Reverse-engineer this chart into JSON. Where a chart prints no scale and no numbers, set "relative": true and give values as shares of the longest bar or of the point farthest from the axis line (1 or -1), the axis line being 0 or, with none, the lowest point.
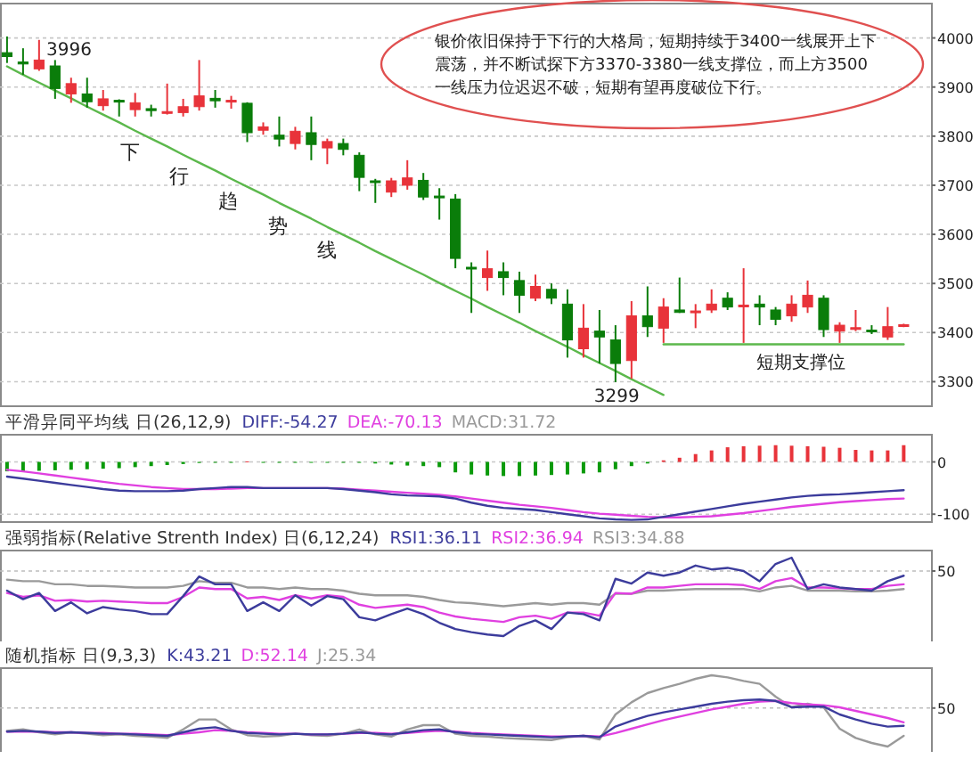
{
  "chart_data": [
    {
      "type": "candlestick",
      "categories": [
        null,
        null,
        null,
        null,
        null,
        null,
        null,
        null,
        null,
        null,
        null,
        null,
        null,
        null,
        null,
        null,
        null,
        null,
        null,
        null,
        null,
        null,
        null,
        null,
        null,
        null,
        null,
        null,
        null,
        null,
        null,
        null,
        null,
        null,
        null,
        null,
        null,
        null,
        null,
        null,
        null,
        null,
        null,
        null,
        null,
        null,
        null,
        null,
        null,
        null,
        null,
        null,
        null,
        null,
        null,
        null,
        null
      ],
      "ohlc": [
        [
          3970,
          4003,
          3949,
          3962
        ],
        [
          3951,
          3979,
          3925,
          3947
        ],
        [
          3937,
          3996,
          3933,
          3955
        ],
        [
          3943,
          3955,
          3876,
          3897
        ],
        [
          3886,
          3919,
          3868,
          3907
        ],
        [
          3886,
          3919,
          3858,
          3870
        ],
        [
          3862,
          3894,
          3852,
          3876
        ],
        [
          3873,
          3875,
          3840,
          3870
        ],
        [
          3854,
          3888,
          3840,
          3868
        ],
        [
          3856,
          3864,
          3840,
          3852
        ],
        [
          3848,
          3907,
          3844,
          3850
        ],
        [
          3848,
          3876,
          3840,
          3860
        ],
        [
          3860,
          3955,
          3852,
          3882
        ],
        [
          3877,
          3894,
          3858,
          3872
        ],
        [
          3870,
          3882,
          3856,
          3873
        ],
        [
          3867,
          3869,
          3788,
          3807
        ],
        [
          3812,
          3828,
          3803,
          3819
        ],
        [
          3802,
          3840,
          3779,
          3794
        ],
        [
          3785,
          3819,
          3773,
          3810
        ],
        [
          3807,
          3840,
          3751,
          3783
        ],
        [
          3776,
          3795,
          3743,
          3789
        ],
        [
          3785,
          3795,
          3761,
          3773
        ],
        [
          3761,
          3767,
          3688,
          3716
        ],
        [
          3709,
          3713,
          3664,
          3706
        ],
        [
          3686,
          3715,
          3676,
          3709
        ],
        [
          3700,
          3751,
          3691,
          3715
        ],
        [
          3710,
          3725,
          3670,
          3676
        ],
        [
          3678,
          3694,
          3630,
          3676
        ],
        [
          3672,
          3682,
          3531,
          3551
        ],
        [
          3533,
          3543,
          3440,
          3530
        ],
        [
          3512,
          3567,
          3485,
          3530
        ],
        [
          3524,
          3543,
          3476,
          3512
        ],
        [
          3506,
          3524,
          3440,
          3476
        ],
        [
          3470,
          3518,
          3464,
          3494
        ],
        [
          3488,
          3500,
          3458,
          3470
        ],
        [
          3458,
          3488,
          3349,
          3385
        ],
        [
          3367,
          3458,
          3349,
          3409
        ],
        [
          3403,
          3446,
          3337,
          3391
        ],
        [
          3385,
          3415,
          3299,
          3337
        ],
        [
          3343,
          3464,
          3306,
          3434
        ],
        [
          3434,
          3494,
          3391,
          3412
        ],
        [
          3409,
          3470,
          3379,
          3452
        ],
        [
          3446,
          3512,
          3440,
          3441
        ],
        [
          3442,
          3458,
          3409,
          3444
        ],
        [
          3446,
          3488,
          3440,
          3458
        ],
        [
          3470,
          3482,
          3446,
          3452
        ],
        [
          3454,
          3531,
          3379,
          3456
        ],
        [
          3458,
          3476,
          3415,
          3452
        ],
        [
          3446,
          3452,
          3415,
          3427
        ],
        [
          3434,
          3476,
          3422,
          3458
        ],
        [
          3452,
          3506,
          3440,
          3476
        ],
        [
          3470,
          3476,
          3391,
          3406
        ],
        [
          3403,
          3421,
          3379,
          3415
        ],
        [
          3408,
          3446,
          3403,
          3410
        ],
        [
          3405,
          3415,
          3397,
          3403
        ],
        [
          3391,
          3452,
          3385,
          3412
        ],
        [
          3413,
          3418,
          3411,
          3416
        ]
      ],
      "colors": [
        "#0a7d0a",
        "#0a7d0a",
        "#e8333a",
        "#0a7d0a",
        "#e8333a",
        "#0a7d0a",
        "#e8333a",
        "#0a7d0a",
        "#e8333a",
        "#0a7d0a",
        "#e8333a",
        "#e8333a",
        "#e8333a",
        "#0a7d0a",
        "#e8333a",
        "#0a7d0a",
        "#e8333a",
        "#0a7d0a",
        "#e8333a",
        "#0a7d0a",
        "#e8333a",
        "#0a7d0a",
        "#0a7d0a",
        "#0a7d0a",
        "#e8333a",
        "#e8333a",
        "#0a7d0a",
        "#0a7d0a",
        "#0a7d0a",
        "#0a7d0a",
        "#e8333a",
        "#0a7d0a",
        "#0a7d0a",
        "#e8333a",
        "#0a7d0a",
        "#0a7d0a",
        "#e8333a",
        "#0a7d0a",
        "#0a7d0a",
        "#e8333a",
        "#0a7d0a",
        "#e8333a",
        "#0a7d0a",
        "#e8333a",
        "#e8333a",
        "#0a7d0a",
        "#e8333a",
        "#0a7d0a",
        "#0a7d0a",
        "#e8333a",
        "#e8333a",
        "#0a7d0a",
        "#e8333a",
        "#e8333a",
        "#0a7d0a",
        "#e8333a",
        "#e8333a"
      ],
      "series": [
        {
          "type": "line",
          "color": "#5cb84c",
          "values": [
            3942,
            3925,
            3909,
            3893,
            3877,
            3860,
            3844,
            3828,
            3811,
            3795,
            3779,
            3762,
            3746,
            3730,
            3713,
            3697,
            3681,
            3664,
            3648,
            3632,
            3615,
            3599,
            3583,
            3566,
            3550,
            3534,
            3518,
            3501,
            3485,
            3469,
            3452,
            3436,
            3420,
            3403,
            3387,
            3371,
            3354,
            3338,
            3322,
            3305,
            3289,
            3273,
            null,
            null,
            null,
            null,
            null,
            null,
            null,
            null,
            null,
            null,
            null,
            null,
            null,
            null,
            null
          ]
        },
        {
          "type": "line",
          "color": "#5cb84c",
          "values": [
            null,
            null,
            null,
            null,
            null,
            null,
            null,
            null,
            null,
            null,
            null,
            null,
            null,
            null,
            null,
            null,
            null,
            null,
            null,
            null,
            null,
            null,
            null,
            null,
            null,
            null,
            null,
            null,
            null,
            null,
            null,
            null,
            null,
            null,
            null,
            null,
            null,
            null,
            null,
            null,
            null,
            3376,
            3376,
            3376,
            3376,
            3376,
            3376,
            3376,
            3376,
            3376,
            3376,
            3376,
            3376,
            3376,
            3376,
            3376,
            3376
          ]
        }
      ],
      "annotations": [
        "银价依旧保持于下行的大格局，短期持续于3400一线展开上下震荡，并不断试探下方3370-3380一线支撑位，而上方3500一线压力位迟迟不破，短期有望再度破位下行。",
        "下行趋势线",
        "3996",
        {
          "text": "3299",
          "y": 3299
        },
        {
          "text": "短期支撑位",
          "y": 3376
        }
      ],
      "ylim": [
        3250,
        4070
      ],
      "yticks": [
        3300,
        3400,
        3500,
        3600,
        3700,
        3800,
        3900,
        4000
      ],
      "grid": "y",
      "tick_labels": "y"
    },
    {
      "type": "line",
      "title": "平滑异同平均线 日(26,12,9)",
      "legend": "top left",
      "tick_labels": "y",
      "grid": "y",
      "categories": [
        null,
        null,
        null,
        null,
        null,
        null,
        null,
        null,
        null,
        null,
        null,
        null,
        null,
        null,
        null,
        null,
        null,
        null,
        null,
        null,
        null,
        null,
        null,
        null,
        null,
        null,
        null,
        null,
        null,
        null,
        null,
        null,
        null,
        null,
        null,
        null,
        null,
        null,
        null,
        null,
        null,
        null,
        null,
        null,
        null,
        null,
        null,
        null,
        null,
        null,
        null,
        null,
        null,
        null,
        null,
        null,
        null
      ],
      "series": [
        {
          "name": "DIFF:-54.27",
          "type": "line",
          "color": "#3c3c9c",
          "values": [
            -28,
            -32,
            -36,
            -40,
            -44,
            -48,
            -52,
            -55,
            -56,
            -56,
            -56,
            -55,
            -52,
            -50,
            -48,
            -48,
            -50,
            -50,
            -50,
            -50,
            -50,
            -52,
            -55,
            -58,
            -62,
            -64,
            -65,
            -66,
            -70,
            -78,
            -84,
            -88,
            -90,
            -92,
            -96,
            -100,
            -104,
            -108,
            -110,
            -111,
            -110,
            -105,
            -100,
            -95,
            -90,
            -85,
            -80,
            -76,
            -72,
            -68,
            -65,
            -63,
            -62,
            -60,
            -58,
            -56,
            -54
          ]
        },
        {
          "name": "DEA:-70.13",
          "type": "line",
          "color": "#e040e0",
          "values": [
            -15,
            -18,
            -22,
            -26,
            -30,
            -34,
            -38,
            -42,
            -45,
            -48,
            -50,
            -52,
            -52,
            -52,
            -51,
            -50,
            -50,
            -50,
            -50,
            -50,
            -50,
            -51,
            -53,
            -55,
            -57,
            -59,
            -61,
            -63,
            -66,
            -70,
            -74,
            -78,
            -82,
            -85,
            -88,
            -92,
            -96,
            -99,
            -101,
            -103,
            -105,
            -106,
            -106,
            -105,
            -104,
            -101,
            -98,
            -94,
            -90,
            -86,
            -83,
            -80,
            -77,
            -75,
            -73,
            -71,
            -70
          ]
        },
        {
          "name": "MACD:31.72",
          "type": "bar",
          "color": "#9a9a9a",
          "values": [
            -18,
            -18,
            -17,
            -16,
            -15,
            -14,
            -13,
            -12,
            -10,
            -8,
            -6,
            -4,
            -2,
            -1,
            -1,
            1,
            -1,
            -1,
            -1,
            -1,
            -1,
            -1,
            -1,
            -3,
            -5,
            -7,
            -8,
            -10,
            -20,
            -24,
            -26,
            -27,
            -27,
            -26,
            -25,
            -24,
            -22,
            -20,
            -14,
            -8,
            -3,
            3,
            8,
            15,
            22,
            28,
            30,
            31,
            32,
            31,
            30,
            29,
            27,
            23,
            22,
            22,
            32
          ],
          "colors": [
            "#0a9a0a",
            "#0a9a0a",
            "#0a9a0a",
            "#0a9a0a",
            "#0a9a0a",
            "#0a9a0a",
            "#0a9a0a",
            "#0a9a0a",
            "#0a9a0a",
            "#0a9a0a",
            "#0a9a0a",
            "#0a9a0a",
            "#0a9a0a",
            "#0a9a0a",
            "#0a9a0a",
            "#e8333a",
            "#0a9a0a",
            "#0a9a0a",
            "#0a9a0a",
            "#0a9a0a",
            "#0a9a0a",
            "#0a9a0a",
            "#0a9a0a",
            "#0a9a0a",
            "#0a9a0a",
            "#0a9a0a",
            "#0a9a0a",
            "#0a9a0a",
            "#0a9a0a",
            "#0a9a0a",
            "#0a9a0a",
            "#0a9a0a",
            "#0a9a0a",
            "#0a9a0a",
            "#0a9a0a",
            "#0a9a0a",
            "#0a9a0a",
            "#0a9a0a",
            "#0a9a0a",
            "#0a9a0a",
            "#0a9a0a",
            "#e8333a",
            "#e8333a",
            "#e8333a",
            "#e8333a",
            "#e8333a",
            "#e8333a",
            "#e8333a",
            "#e8333a",
            "#e8333a",
            "#e8333a",
            "#e8333a",
            "#e8333a",
            "#e8333a",
            "#e8333a",
            "#e8333a",
            "#e8333a"
          ]
        }
      ],
      "ylim": [
        -115,
        52
      ],
      "yticks": [
        -100,
        0
      ]
    },
    {
      "type": "line",
      "title": "强弱指标(Relative Strenth Index) 日(6,12,24)",
      "legend": "top right",
      "relative": true,
      "categories": [
        null,
        null,
        null,
        null,
        null,
        null,
        null,
        null,
        null,
        null,
        null,
        null,
        null,
        null,
        null,
        null,
        null,
        null,
        null,
        null,
        null,
        null,
        null,
        null,
        null,
        null,
        null,
        null,
        null,
        null,
        null,
        null,
        null,
        null,
        null,
        null,
        null,
        null,
        null,
        null,
        null,
        null,
        null,
        null,
        null,
        null,
        null,
        null,
        null,
        null,
        null,
        null,
        null,
        null,
        null,
        null,
        null
      ],
      "series": [
        {
          "name": "RSI1:36.11",
          "color": "#3c3c9c",
          "values": [
            0.58,
            0.47,
            0.55,
            0.32,
            0.43,
            0.29,
            0.37,
            0.34,
            0.32,
            0.28,
            0.28,
            0.51,
            0.76,
            0.66,
            0.66,
            0.32,
            0.43,
            0.32,
            0.52,
            0.39,
            0.51,
            0.47,
            0.24,
            0.2,
            0.28,
            0.35,
            0.28,
            0.17,
            0.09,
            0.05,
            0.02,
            0,
            0.13,
            0.2,
            0.09,
            0.3,
            0.28,
            0.2,
            0.73,
            0.67,
            0.81,
            0.77,
            0.81,
            0.9,
            0.85,
            0.87,
            0.83,
            0.7,
            0.92,
            1,
            0.6,
            0.66,
            0.62,
            0.6,
            0.58,
            0.7,
            0.77
          ]
        },
        {
          "name": "RSI2:36.94",
          "color": "#e040e0",
          "values": [
            0.55,
            0.5,
            0.52,
            0.45,
            0.46,
            0.44,
            0.45,
            0.44,
            0.43,
            0.42,
            0.42,
            0.5,
            0.62,
            0.6,
            0.6,
            0.48,
            0.5,
            0.46,
            0.52,
            0.48,
            0.52,
            0.5,
            0.4,
            0.36,
            0.38,
            0.4,
            0.37,
            0.3,
            0.25,
            0.22,
            0.2,
            0.18,
            0.24,
            0.26,
            0.22,
            0.3,
            0.3,
            0.26,
            0.55,
            0.54,
            0.62,
            0.62,
            0.64,
            0.66,
            0.66,
            0.66,
            0.65,
            0.6,
            0.7,
            0.74,
            0.62,
            0.62,
            0.61,
            0.6,
            0.6,
            0.64,
            0.66
          ]
        },
        {
          "name": "RSI3:34.88",
          "color": "#9a9a9a",
          "values": [
            0.72,
            0.7,
            0.7,
            0.66,
            0.66,
            0.64,
            0.64,
            0.63,
            0.62,
            0.62,
            0.62,
            0.64,
            0.7,
            0.68,
            0.68,
            0.62,
            0.62,
            0.6,
            0.62,
            0.6,
            0.6,
            0.58,
            0.54,
            0.52,
            0.52,
            0.52,
            0.5,
            0.46,
            0.43,
            0.42,
            0.4,
            0.38,
            0.4,
            0.42,
            0.4,
            0.42,
            0.42,
            0.4,
            0.54,
            0.54,
            0.58,
            0.58,
            0.59,
            0.6,
            0.6,
            0.6,
            0.6,
            0.57,
            0.62,
            0.64,
            0.58,
            0.58,
            0.58,
            0.57,
            0.57,
            0.58,
            0.6
          ]
        }
      ],
      "ref_lines": [
        {
          "axis": "y",
          "value": 0.83
        }
      ],
      "annotations": [
        "50"
      ]
    },
    {
      "type": "line",
      "title": "随机指标 日(9,3,3)",
      "legend": "top left",
      "relative": true,
      "categories": [
        null,
        null,
        null,
        null,
        null,
        null,
        null,
        null,
        null,
        null,
        null,
        null,
        null,
        null,
        null,
        null,
        null,
        null,
        null,
        null,
        null,
        null,
        null,
        null,
        null,
        null,
        null,
        null,
        null,
        null,
        null,
        null,
        null,
        null,
        null,
        null,
        null,
        null,
        null,
        null,
        null,
        null,
        null,
        null,
        null,
        null,
        null,
        null,
        null,
        null,
        null,
        null,
        null,
        null,
        null,
        null,
        null
      ],
      "series": [
        {
          "name": "K:43.21",
          "color": "#3c3c9c",
          "values": [
            0.21,
            0.22,
            0.21,
            0.19,
            0.2,
            0.19,
            0.18,
            0.18,
            0.17,
            0.16,
            0.15,
            0.2,
            0.25,
            0.27,
            0.22,
            0.19,
            0.18,
            0.17,
            0.18,
            0.17,
            0.17,
            0.18,
            0.2,
            0.18,
            0.17,
            0.2,
            0.23,
            0.24,
            0.2,
            0.18,
            0.17,
            0.16,
            0.15,
            0.14,
            0.13,
            0.14,
            0.15,
            0.13,
            0.28,
            0.36,
            0.43,
            0.48,
            0.52,
            0.56,
            0.6,
            0.63,
            0.65,
            0.66,
            0.64,
            0.55,
            0.56,
            0.56,
            0.45,
            0.38,
            0.32,
            0.28,
            0.29
          ]
        },
        {
          "name": "D:52.14",
          "color": "#e040e0",
          "values": [
            0.21,
            0.21,
            0.21,
            0.2,
            0.2,
            0.19,
            0.19,
            0.18,
            0.18,
            0.17,
            0.16,
            0.18,
            0.2,
            0.23,
            0.22,
            0.2,
            0.19,
            0.18,
            0.18,
            0.17,
            0.17,
            0.18,
            0.19,
            0.19,
            0.18,
            0.19,
            0.21,
            0.22,
            0.21,
            0.19,
            0.18,
            0.17,
            0.16,
            0.15,
            0.14,
            0.14,
            0.15,
            0.14,
            0.19,
            0.25,
            0.31,
            0.37,
            0.42,
            0.47,
            0.52,
            0.56,
            0.6,
            0.63,
            0.64,
            0.61,
            0.59,
            0.58,
            0.55,
            0.5,
            0.45,
            0.4,
            0.34
          ]
        },
        {
          "name": "J:25.34",
          "color": "#9a9a9a",
          "values": [
            0.22,
            0.24,
            0.2,
            0.17,
            0.2,
            0.18,
            0.16,
            0.17,
            0.15,
            0.14,
            0.12,
            0.24,
            0.38,
            0.38,
            0.24,
            0.16,
            0.14,
            0.15,
            0.18,
            0.16,
            0.15,
            0.18,
            0.24,
            0.17,
            0.14,
            0.24,
            0.3,
            0.3,
            0.18,
            0.15,
            0.14,
            0.12,
            0.11,
            0.1,
            0.09,
            0.13,
            0.15,
            0.1,
            0.45,
            0.62,
            0.75,
            0.82,
            0.88,
            0.95,
            1,
            0.97,
            0.92,
            0.88,
            0.7,
            0.55,
            0.6,
            0.55,
            0.25,
            0.12,
            0.05,
            0,
            0.15
          ]
        }
      ],
      "ref_lines": [
        {
          "axis": "y",
          "value": 0.54
        }
      ],
      "annotations": [
        "50"
      ]
    }
  ]
}
